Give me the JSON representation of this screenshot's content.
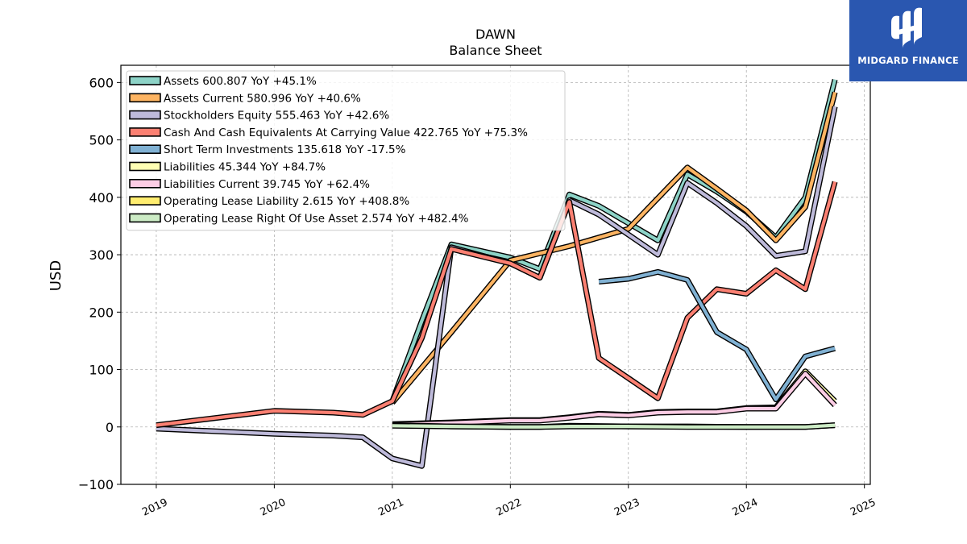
{
  "logo": {
    "text": "MIDGARD FINANCE"
  },
  "chart_data": {
    "type": "line",
    "title": "DAWN",
    "subtitle": "Balance  Sheet",
    "ylabel": "USD",
    "xlabel": "",
    "ylim": [
      -100,
      630
    ],
    "xlim": [
      2018.7,
      2025.05
    ],
    "yticks": [
      -100,
      0,
      100,
      200,
      300,
      400,
      500,
      600
    ],
    "ytick_labels": [
      "−100",
      "0",
      "100",
      "200",
      "300",
      "400",
      "500",
      "600"
    ],
    "xticks": [
      2019,
      2020,
      2021,
      2022,
      2023,
      2024,
      2025
    ],
    "xtick_labels": [
      "2019",
      "2020",
      "2021",
      "2022",
      "2023",
      "2024",
      "2025"
    ],
    "grid": true,
    "legend_position": "top-left",
    "series": [
      {
        "name": "Assets",
        "legend_label": "Assets  600.807 YoY +45.1%",
        "color": "#8dd3c7",
        "points": [
          [
            2021.0,
            45
          ],
          [
            2021.25,
            185
          ],
          [
            2021.5,
            318
          ],
          [
            2022.0,
            295
          ],
          [
            2022.25,
            275
          ],
          [
            2022.5,
            405
          ],
          [
            2022.75,
            385
          ],
          [
            2023.0,
            355
          ],
          [
            2023.25,
            325
          ],
          [
            2023.5,
            440
          ],
          [
            2023.75,
            410
          ],
          [
            2024.0,
            375
          ],
          [
            2024.25,
            330
          ],
          [
            2024.5,
            400
          ],
          [
            2024.75,
            605
          ]
        ]
      },
      {
        "name": "Assets Current",
        "legend_label": "Assets Current  580.996 YoY +40.6%",
        "color": "#fdb462",
        "points": [
          [
            2021.0,
            42
          ],
          [
            2021.5,
            165
          ],
          [
            2022.0,
            290
          ],
          [
            2022.5,
            315
          ],
          [
            2023.0,
            345
          ],
          [
            2023.5,
            452
          ],
          [
            2023.75,
            415
          ],
          [
            2024.0,
            377
          ],
          [
            2024.25,
            325
          ],
          [
            2024.5,
            383
          ],
          [
            2024.75,
            583
          ]
        ]
      },
      {
        "name": "Stockholders Equity",
        "legend_label": "Stockholders Equity  555.463 YoY +42.6%",
        "color": "#bebada",
        "points": [
          [
            2019.0,
            -3
          ],
          [
            2020.0,
            -12
          ],
          [
            2020.5,
            -15
          ],
          [
            2020.75,
            -18
          ],
          [
            2021.0,
            -55
          ],
          [
            2021.25,
            -68
          ],
          [
            2021.5,
            313
          ],
          [
            2022.0,
            285
          ],
          [
            2022.25,
            260
          ],
          [
            2022.5,
            395
          ],
          [
            2022.75,
            370
          ],
          [
            2023.0,
            335
          ],
          [
            2023.25,
            300
          ],
          [
            2023.5,
            425
          ],
          [
            2023.75,
            390
          ],
          [
            2024.0,
            350
          ],
          [
            2024.25,
            298
          ],
          [
            2024.5,
            306
          ],
          [
            2024.75,
            558
          ]
        ]
      },
      {
        "name": "Cash And Cash Equivalents At Carrying Value",
        "legend_label": "Cash And Cash Equivalents At Carrying Value  422.765 YoY +75.3%",
        "color": "#fb8072",
        "points": [
          [
            2019.0,
            3
          ],
          [
            2020.0,
            28
          ],
          [
            2020.5,
            25
          ],
          [
            2020.75,
            21
          ],
          [
            2021.0,
            45
          ],
          [
            2021.25,
            155
          ],
          [
            2021.5,
            310
          ],
          [
            2022.0,
            285
          ],
          [
            2022.25,
            260
          ],
          [
            2022.5,
            392
          ],
          [
            2022.75,
            120
          ],
          [
            2023.0,
            85
          ],
          [
            2023.25,
            50
          ],
          [
            2023.5,
            190
          ],
          [
            2023.75,
            240
          ],
          [
            2024.0,
            232
          ],
          [
            2024.25,
            273
          ],
          [
            2024.5,
            240
          ],
          [
            2024.75,
            427
          ]
        ]
      },
      {
        "name": "Short Term Investments",
        "legend_label": "Short Term Investments  135.618 YoY -17.5%",
        "color": "#80b1d3",
        "points": [
          [
            2022.75,
            253
          ],
          [
            2023.0,
            258
          ],
          [
            2023.25,
            270
          ],
          [
            2023.5,
            256
          ],
          [
            2023.75,
            165
          ],
          [
            2024.0,
            135
          ],
          [
            2024.25,
            48
          ],
          [
            2024.5,
            123
          ],
          [
            2024.75,
            137
          ]
        ]
      },
      {
        "name": "Liabilities",
        "legend_label": "Liabilities  45.344 YoY +84.7%",
        "color": "#ffffb3",
        "points": [
          [
            2021.0,
            5
          ],
          [
            2021.5,
            8
          ],
          [
            2022.0,
            12
          ],
          [
            2022.25,
            12
          ],
          [
            2022.5,
            17
          ],
          [
            2022.75,
            23
          ],
          [
            2023.0,
            21
          ],
          [
            2023.25,
            26
          ],
          [
            2023.5,
            27
          ],
          [
            2023.75,
            27
          ],
          [
            2024.0,
            33
          ],
          [
            2024.25,
            34
          ],
          [
            2024.5,
            97
          ],
          [
            2024.75,
            45
          ]
        ]
      },
      {
        "name": "Liabilities Current",
        "legend_label": "Liabilities Current  39.745 YoY +62.4%",
        "color": "#fccde5",
        "points": [
          [
            2021.0,
            4
          ],
          [
            2021.5,
            7
          ],
          [
            2022.0,
            11
          ],
          [
            2022.25,
            11
          ],
          [
            2022.5,
            16
          ],
          [
            2022.75,
            22
          ],
          [
            2023.0,
            20
          ],
          [
            2023.25,
            25
          ],
          [
            2023.5,
            26
          ],
          [
            2023.75,
            26
          ],
          [
            2024.0,
            32
          ],
          [
            2024.25,
            32
          ],
          [
            2024.5,
            93
          ],
          [
            2024.75,
            38
          ]
        ]
      },
      {
        "name": "Operating Lease Liability",
        "legend_label": "Operating Lease Liability  2.615 YoY +408.8%",
        "color": "#ffed6f",
        "points": [
          [
            2021.0,
            3
          ],
          [
            2021.5,
            1
          ],
          [
            2022.0,
            0
          ],
          [
            2022.25,
            0
          ],
          [
            2022.5,
            2
          ],
          [
            2023.0,
            1
          ],
          [
            2023.5,
            1
          ],
          [
            2024.0,
            0
          ],
          [
            2024.5,
            0
          ],
          [
            2024.75,
            3
          ]
        ]
      },
      {
        "name": "Operating Lease Right Of Use Asset",
        "legend_label": "Operating Lease Right Of Use Asset  2.574 YoY +482.4%",
        "color": "#ccebc5",
        "points": [
          [
            2021.0,
            2
          ],
          [
            2021.5,
            1
          ],
          [
            2022.0,
            0
          ],
          [
            2022.25,
            0
          ],
          [
            2022.5,
            1
          ],
          [
            2023.0,
            1
          ],
          [
            2023.5,
            0
          ],
          [
            2024.0,
            0
          ],
          [
            2024.5,
            0
          ],
          [
            2024.75,
            3
          ]
        ]
      }
    ]
  }
}
